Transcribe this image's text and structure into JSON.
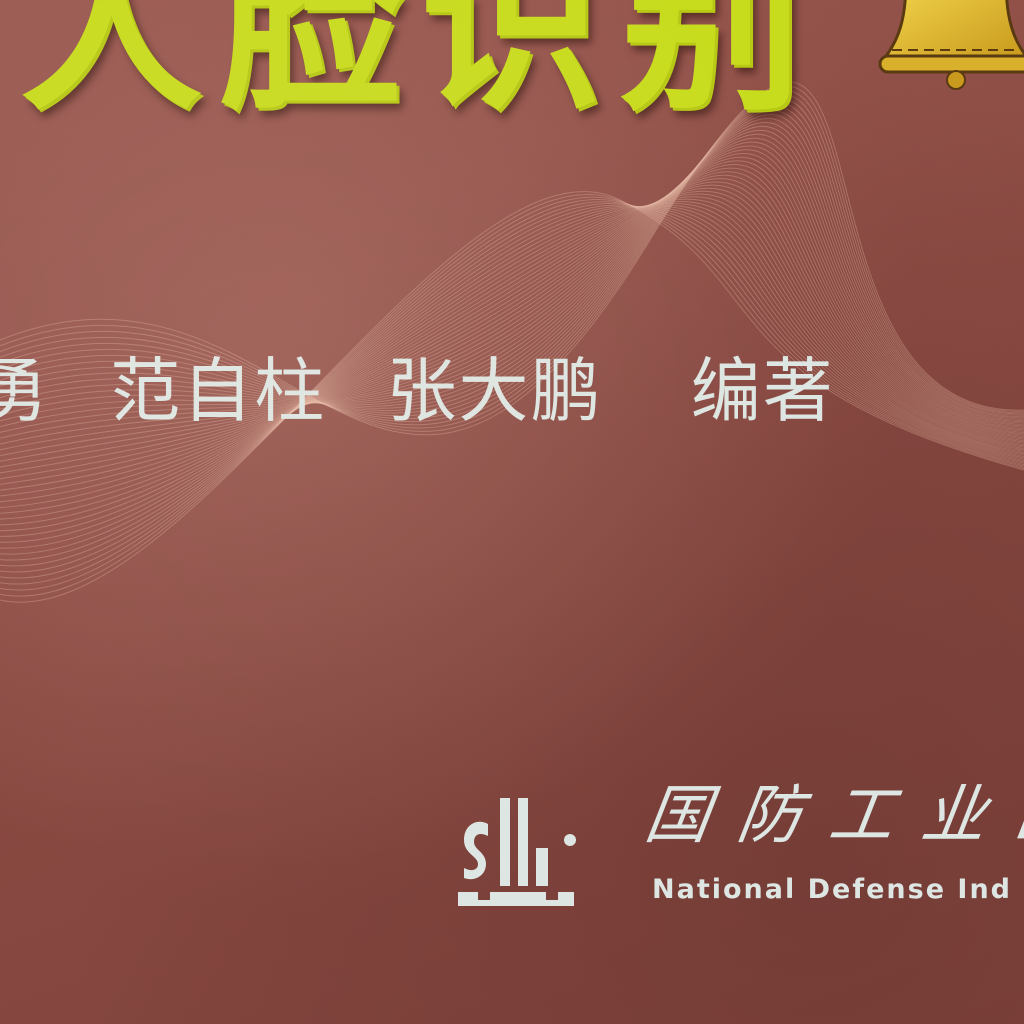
{
  "cover": {
    "title": "人脸识别",
    "authors": [
      "勇",
      "范自柱",
      "张大鹏"
    ],
    "role": "编著",
    "publisher_cn": "国防工业出",
    "publisher_en": "National Defense Ind"
  },
  "colors": {
    "background": "#8a4a42",
    "title": "#c8dc1e",
    "text": "#dde6e2",
    "bell": "#e8c23a"
  },
  "icons": {
    "bell": "bell-icon",
    "logo": "publisher-logo"
  }
}
